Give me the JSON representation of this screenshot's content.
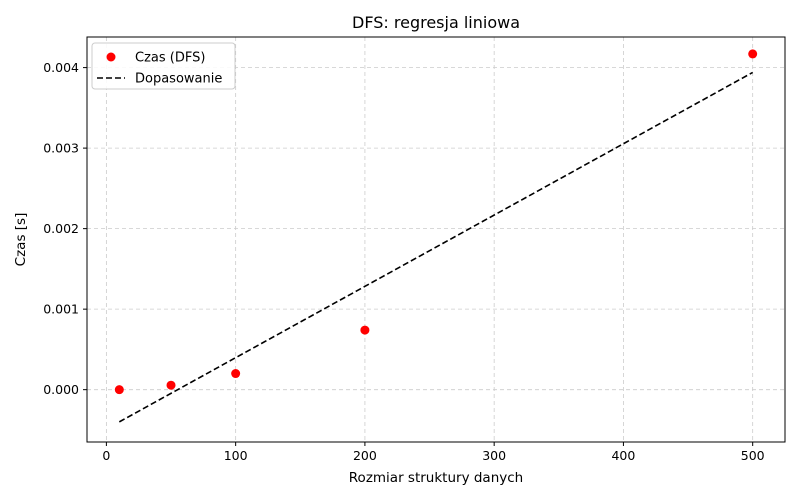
{
  "chart_data": {
    "type": "scatter",
    "title": "DFS: regresja liniowa",
    "xlabel": "Rozmiar struktury danych",
    "ylabel": "Czas [s]",
    "xlim": [
      -15,
      525
    ],
    "ylim": [
      -0.00065,
      0.00438
    ],
    "xticks": [
      0,
      100,
      200,
      300,
      400,
      500
    ],
    "xtick_labels": [
      "0",
      "100",
      "200",
      "300",
      "400",
      "500"
    ],
    "yticks": [
      0.0,
      0.001,
      0.002,
      0.003,
      0.004
    ],
    "ytick_labels": [
      "0.000",
      "0.001",
      "0.002",
      "0.003",
      "0.004"
    ],
    "grid": true,
    "legend_position": "top-left",
    "series": [
      {
        "name": "Czas (DFS)",
        "kind": "scatter",
        "color": "#ff0000",
        "x": [
          10,
          50,
          100,
          200,
          500
        ],
        "y": [
          3e-07,
          5.5e-05,
          0.0002,
          0.00074,
          0.00417
        ]
      },
      {
        "name": "Dopasowanie",
        "kind": "line",
        "style": "dashed",
        "color": "#000000",
        "x": [
          10,
          500
        ],
        "y": [
          -0.0004,
          0.00394
        ]
      }
    ]
  }
}
